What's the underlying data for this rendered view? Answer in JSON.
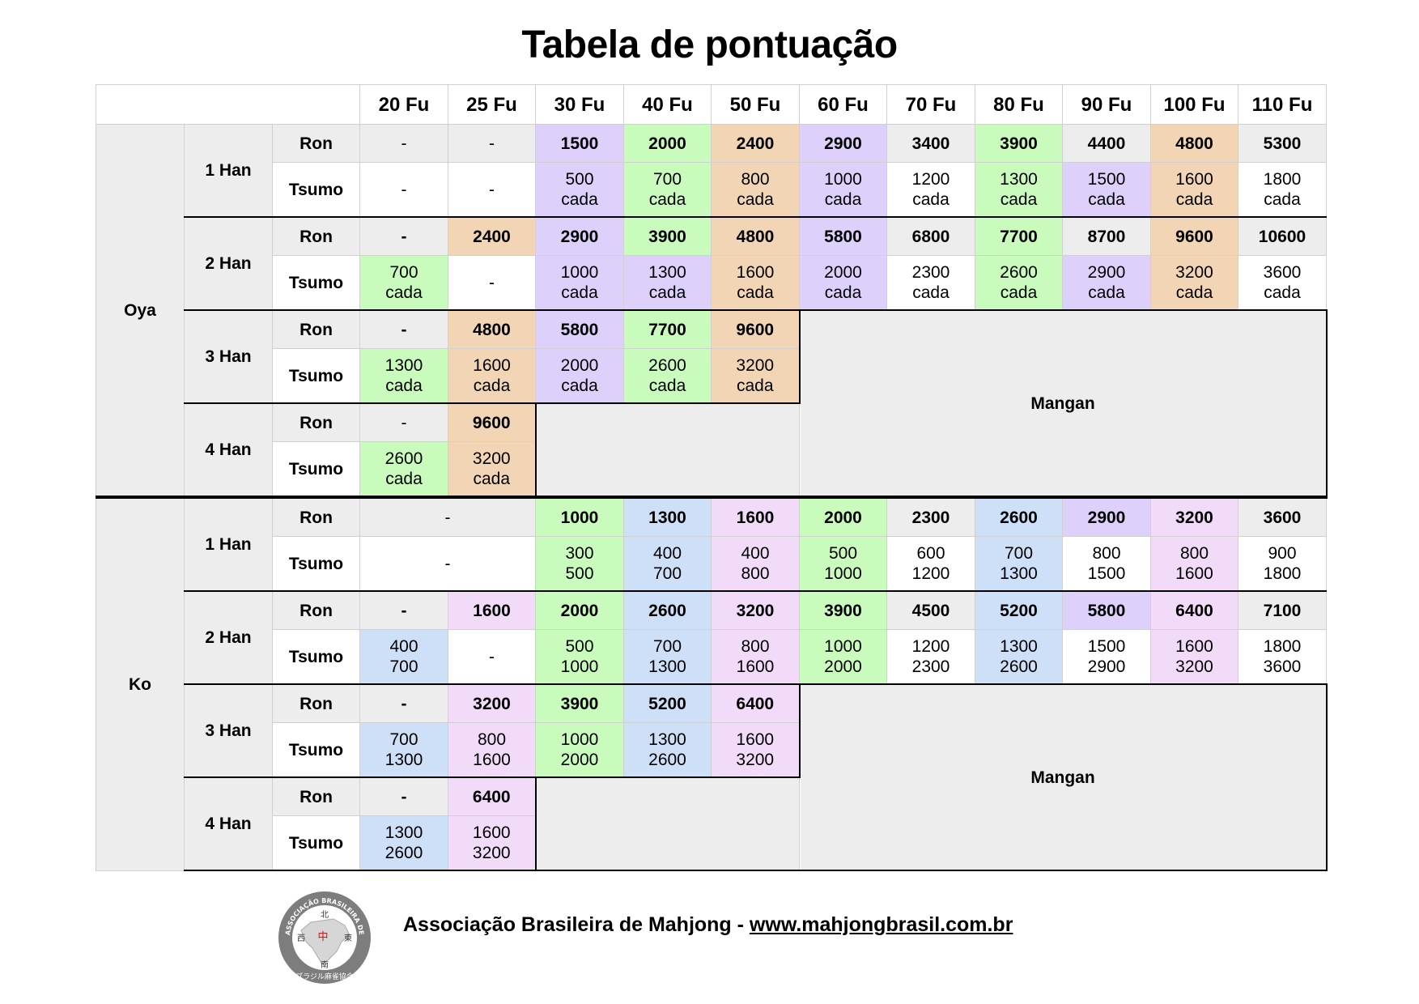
{
  "title": "Tabela de pontuação",
  "colors": {
    "white": "#ffffff",
    "gray": "#ededed",
    "purple": "#ddd0fb",
    "green": "#c9fbbc",
    "orange": "#f1d5b4",
    "blue": "#cde0f8",
    "pink": "#f1dbf9"
  },
  "fu_headers": [
    "20 Fu",
    "25 Fu",
    "30 Fu",
    "40 Fu",
    "50 Fu",
    "60 Fu",
    "70 Fu",
    "80 Fu",
    "90 Fu",
    "100 Fu",
    "110 Fu"
  ],
  "row_labels": {
    "ron": "Ron",
    "tsumo": "Tsumo"
  },
  "mangan_label": "Mangan",
  "groups": [
    {
      "name": "Oya",
      "hans": [
        {
          "label": "1 Han",
          "ron": [
            {
              "v": "-",
              "c": "g",
              "n": true
            },
            {
              "v": "-",
              "c": "g",
              "n": true
            },
            {
              "v": "1500",
              "c": "p"
            },
            {
              "v": "2000",
              "c": "gr"
            },
            {
              "v": "2400",
              "c": "o"
            },
            {
              "v": "2900",
              "c": "p"
            },
            {
              "v": "3400",
              "c": "g"
            },
            {
              "v": "3900",
              "c": "gr"
            },
            {
              "v": "4400",
              "c": "g"
            },
            {
              "v": "4800",
              "c": "o"
            },
            {
              "v": "5300",
              "c": "g"
            }
          ],
          "tsumo": [
            {
              "l1": "-",
              "c": "w"
            },
            {
              "l1": "-",
              "c": "w"
            },
            {
              "l1": "500",
              "l2": "cada",
              "c": "p"
            },
            {
              "l1": "700",
              "l2": "cada",
              "c": "gr"
            },
            {
              "l1": "800",
              "l2": "cada",
              "c": "o"
            },
            {
              "l1": "1000",
              "l2": "cada",
              "c": "p"
            },
            {
              "l1": "1200",
              "l2": "cada",
              "c": "w"
            },
            {
              "l1": "1300",
              "l2": "cada",
              "c": "gr"
            },
            {
              "l1": "1500",
              "l2": "cada",
              "c": "p"
            },
            {
              "l1": "1600",
              "l2": "cada",
              "c": "o"
            },
            {
              "l1": "1800",
              "l2": "cada",
              "c": "w"
            }
          ]
        },
        {
          "label": "2 Han",
          "ron": [
            {
              "v": "-",
              "c": "g"
            },
            {
              "v": "2400",
              "c": "o"
            },
            {
              "v": "2900",
              "c": "p"
            },
            {
              "v": "3900",
              "c": "gr"
            },
            {
              "v": "4800",
              "c": "o"
            },
            {
              "v": "5800",
              "c": "p"
            },
            {
              "v": "6800",
              "c": "g"
            },
            {
              "v": "7700",
              "c": "gr"
            },
            {
              "v": "8700",
              "c": "g"
            },
            {
              "v": "9600",
              "c": "o"
            },
            {
              "v": "10600",
              "c": "g"
            }
          ],
          "tsumo": [
            {
              "l1": "700",
              "l2": "cada",
              "c": "gr"
            },
            {
              "l1": "-",
              "c": "w"
            },
            {
              "l1": "1000",
              "l2": "cada",
              "c": "p"
            },
            {
              "l1": "1300",
              "l2": "cada",
              "c": "p"
            },
            {
              "l1": "1600",
              "l2": "cada",
              "c": "o"
            },
            {
              "l1": "2000",
              "l2": "cada",
              "c": "p"
            },
            {
              "l1": "2300",
              "l2": "cada",
              "c": "w"
            },
            {
              "l1": "2600",
              "l2": "cada",
              "c": "gr"
            },
            {
              "l1": "2900",
              "l2": "cada",
              "c": "p"
            },
            {
              "l1": "3200",
              "l2": "cada",
              "c": "o"
            },
            {
              "l1": "3600",
              "l2": "cada",
              "c": "w"
            }
          ]
        },
        {
          "label": "3 Han",
          "ron": [
            {
              "v": "-",
              "c": "g"
            },
            {
              "v": "4800",
              "c": "o"
            },
            {
              "v": "5800",
              "c": "p"
            },
            {
              "v": "7700",
              "c": "gr"
            },
            {
              "v": "9600",
              "c": "o"
            }
          ],
          "tsumo": [
            {
              "l1": "1300",
              "l2": "cada",
              "c": "gr"
            },
            {
              "l1": "1600",
              "l2": "cada",
              "c": "o"
            },
            {
              "l1": "2000",
              "l2": "cada",
              "c": "p"
            },
            {
              "l1": "2600",
              "l2": "cada",
              "c": "gr"
            },
            {
              "l1": "3200",
              "l2": "cada",
              "c": "o"
            }
          ]
        },
        {
          "label": "4 Han",
          "ron": [
            {
              "v": "-",
              "c": "g",
              "n": true
            },
            {
              "v": "9600",
              "c": "o"
            }
          ],
          "tsumo": [
            {
              "l1": "2600",
              "l2": "cada",
              "c": "gr"
            },
            {
              "l1": "3200",
              "l2": "cada",
              "c": "o"
            }
          ]
        }
      ]
    },
    {
      "name": "Ko",
      "hans": [
        {
          "label": "1 Han",
          "ron": [
            {
              "v": "-",
              "c": "g",
              "span": 2,
              "n": true
            },
            {
              "v": "1000",
              "c": "gr"
            },
            {
              "v": "1300",
              "c": "b"
            },
            {
              "v": "1600",
              "c": "pk"
            },
            {
              "v": "2000",
              "c": "gr"
            },
            {
              "v": "2300",
              "c": "g"
            },
            {
              "v": "2600",
              "c": "b"
            },
            {
              "v": "2900",
              "c": "p"
            },
            {
              "v": "3200",
              "c": "pk"
            },
            {
              "v": "3600",
              "c": "g"
            }
          ],
          "tsumo": [
            {
              "l1": "-",
              "c": "w",
              "span": 2
            },
            {
              "l1": "300",
              "l2": "500",
              "c": "gr"
            },
            {
              "l1": "400",
              "l2": "700",
              "c": "b"
            },
            {
              "l1": "400",
              "l2": "800",
              "c": "pk"
            },
            {
              "l1": "500",
              "l2": "1000",
              "c": "gr"
            },
            {
              "l1": "600",
              "l2": "1200",
              "c": "w"
            },
            {
              "l1": "700",
              "l2": "1300",
              "c": "b"
            },
            {
              "l1": "800",
              "l2": "1500",
              "c": "w"
            },
            {
              "l1": "800",
              "l2": "1600",
              "c": "pk"
            },
            {
              "l1": "900",
              "l2": "1800",
              "c": "w"
            }
          ]
        },
        {
          "label": "2 Han",
          "ron": [
            {
              "v": "-",
              "c": "g"
            },
            {
              "v": "1600",
              "c": "pk"
            },
            {
              "v": "2000",
              "c": "gr"
            },
            {
              "v": "2600",
              "c": "b"
            },
            {
              "v": "3200",
              "c": "pk"
            },
            {
              "v": "3900",
              "c": "gr"
            },
            {
              "v": "4500",
              "c": "g"
            },
            {
              "v": "5200",
              "c": "b"
            },
            {
              "v": "5800",
              "c": "p"
            },
            {
              "v": "6400",
              "c": "pk"
            },
            {
              "v": "7100",
              "c": "g"
            }
          ],
          "tsumo": [
            {
              "l1": "400",
              "l2": "700",
              "c": "b"
            },
            {
              "l1": "-",
              "c": "w"
            },
            {
              "l1": "500",
              "l2": "1000",
              "c": "gr"
            },
            {
              "l1": "700",
              "l2": "1300",
              "c": "b"
            },
            {
              "l1": "800",
              "l2": "1600",
              "c": "pk"
            },
            {
              "l1": "1000",
              "l2": "2000",
              "c": "gr"
            },
            {
              "l1": "1200",
              "l2": "2300",
              "c": "w"
            },
            {
              "l1": "1300",
              "l2": "2600",
              "c": "b"
            },
            {
              "l1": "1500",
              "l2": "2900",
              "c": "w"
            },
            {
              "l1": "1600",
              "l2": "3200",
              "c": "pk"
            },
            {
              "l1": "1800",
              "l2": "3600",
              "c": "w"
            }
          ]
        },
        {
          "label": "3 Han",
          "ron": [
            {
              "v": "-",
              "c": "g"
            },
            {
              "v": "3200",
              "c": "pk"
            },
            {
              "v": "3900",
              "c": "gr"
            },
            {
              "v": "5200",
              "c": "b"
            },
            {
              "v": "6400",
              "c": "pk"
            }
          ],
          "tsumo": [
            {
              "l1": "700",
              "l2": "1300",
              "c": "b"
            },
            {
              "l1": "800",
              "l2": "1600",
              "c": "pk"
            },
            {
              "l1": "1000",
              "l2": "2000",
              "c": "gr"
            },
            {
              "l1": "1300",
              "l2": "2600",
              "c": "b"
            },
            {
              "l1": "1600",
              "l2": "3200",
              "c": "pk"
            }
          ]
        },
        {
          "label": "4 Han",
          "ron": [
            {
              "v": "-",
              "c": "g"
            },
            {
              "v": "6400",
              "c": "pk"
            }
          ],
          "tsumo": [
            {
              "l1": "1300",
              "l2": "2600",
              "c": "b"
            },
            {
              "l1": "1600",
              "l2": "3200",
              "c": "pk"
            }
          ]
        }
      ]
    }
  ],
  "footer": {
    "text": "Associação Brasileira de Mahjong - ",
    "link": "www.mahjongbrasil.com.br"
  },
  "seal": {
    "ring_text": "ASSOCIAÇÃO BRASILEIRA DE MAHJONG",
    "bottom_text": "ブラジル麻雀協会",
    "winds": [
      "北",
      "西",
      "中",
      "東",
      "南"
    ]
  }
}
